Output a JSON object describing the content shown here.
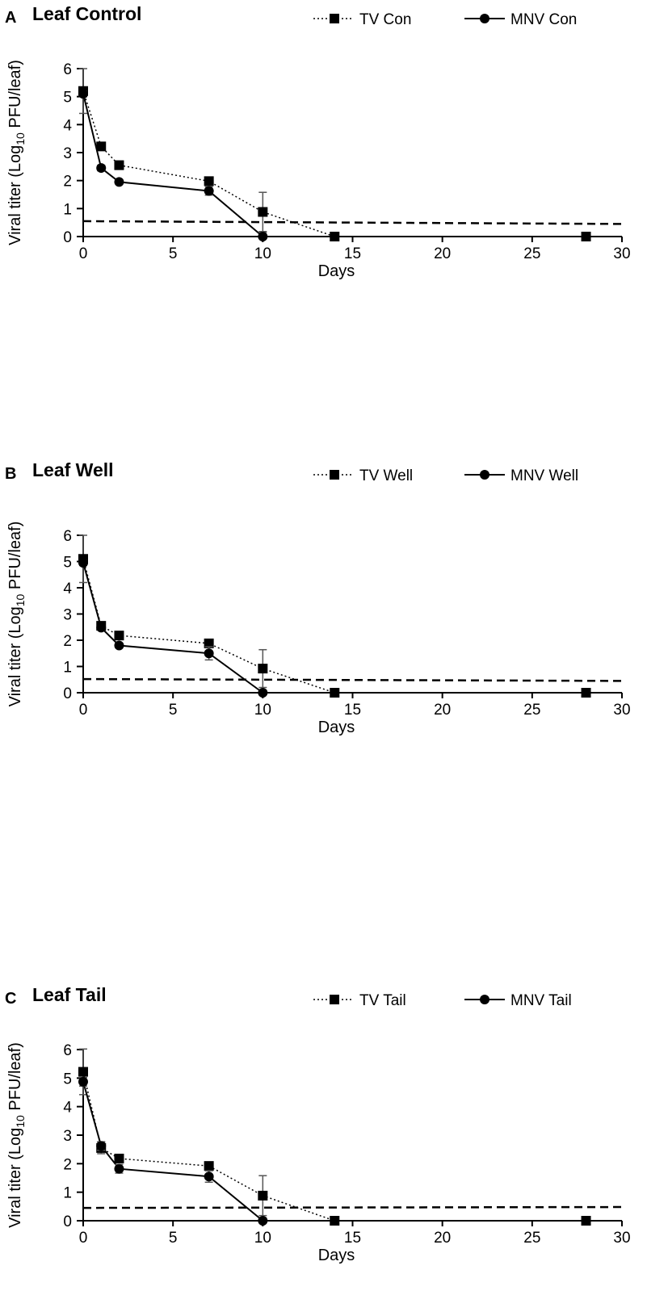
{
  "chart_data": [
    {
      "type": "line",
      "panel_letter": "A",
      "title": "Leaf Control",
      "xlabel": "Days",
      "ylabel": "Viral titer (Log10 PFU/leaf)",
      "ylabel_parts": [
        "Viral titer (Log",
        "10",
        " PFU/leaf)"
      ],
      "xlim": [
        0,
        30
      ],
      "ylim": [
        0,
        6
      ],
      "xticks": [
        0,
        5,
        10,
        15,
        20,
        25,
        30
      ],
      "yticks": [
        0,
        1,
        2,
        3,
        4,
        5,
        6
      ],
      "legend_position": "top-right",
      "series": [
        {
          "name": "TV Con",
          "style": "dotted",
          "marker": "square",
          "x": [
            0,
            1,
            2,
            7,
            10,
            14,
            28
          ],
          "y": [
            5.2,
            3.22,
            2.55,
            1.98,
            0.88,
            0,
            0
          ],
          "err": [
            0.8,
            0.05,
            0.15,
            0.08,
            0.7,
            0,
            0
          ]
        },
        {
          "name": "MNV Con",
          "style": "solid",
          "marker": "circle",
          "x": [
            0,
            1,
            2,
            7,
            10
          ],
          "y": [
            5.1,
            2.45,
            1.95,
            1.63,
            0
          ],
          "err": [
            0.1,
            0.1,
            0.08,
            0.15,
            0.15
          ]
        }
      ],
      "detection_limit": {
        "style": "dashed",
        "x": [
          0,
          30
        ],
        "y": [
          0.55,
          0.45
        ]
      }
    },
    {
      "type": "line",
      "panel_letter": "B",
      "title": "Leaf Well",
      "xlabel": "Days",
      "ylabel": "Viral titer (Log10 PFU/leaf)",
      "ylabel_parts": [
        "Viral titer (Log",
        "10",
        " PFU/leaf)"
      ],
      "xlim": [
        0,
        30
      ],
      "ylim": [
        0,
        6
      ],
      "xticks": [
        0,
        5,
        10,
        15,
        20,
        25,
        30
      ],
      "yticks": [
        0,
        1,
        2,
        3,
        4,
        5,
        6
      ],
      "legend_position": "top-right",
      "series": [
        {
          "name": "TV Well",
          "style": "dotted",
          "marker": "square",
          "x": [
            0,
            1,
            2,
            7,
            10,
            14,
            28
          ],
          "y": [
            5.1,
            2.55,
            2.18,
            1.88,
            0.92,
            0,
            0
          ],
          "err": [
            0.9,
            0.05,
            0.08,
            0.08,
            0.72,
            0,
            0
          ]
        },
        {
          "name": "MNV Well",
          "style": "solid",
          "marker": "circle",
          "x": [
            0,
            1,
            2,
            7,
            10
          ],
          "y": [
            4.95,
            2.48,
            1.8,
            1.5,
            0
          ],
          "err": [
            0.1,
            0.08,
            0.08,
            0.25,
            0.1
          ]
        }
      ],
      "detection_limit": {
        "style": "dashed",
        "x": [
          0,
          30
        ],
        "y": [
          0.52,
          0.45
        ]
      }
    },
    {
      "type": "line",
      "panel_letter": "C",
      "title": "Leaf Tail",
      "xlabel": "Days",
      "ylabel": "Viral titer (Log10 PFU/leaf)",
      "ylabel_parts": [
        "Viral titer (Log",
        "10",
        " PFU/leaf)"
      ],
      "xlim": [
        0,
        30
      ],
      "ylim": [
        0,
        6
      ],
      "xticks": [
        0,
        5,
        10,
        15,
        20,
        25,
        30
      ],
      "yticks": [
        0,
        1,
        2,
        3,
        4,
        5,
        6
      ],
      "legend_position": "top-right",
      "series": [
        {
          "name": "TV Tail",
          "style": "dotted",
          "marker": "square",
          "x": [
            0,
            1,
            2,
            7,
            10,
            14,
            28
          ],
          "y": [
            5.22,
            2.55,
            2.18,
            1.92,
            0.88,
            0,
            0
          ],
          "err": [
            0.8,
            0.2,
            0.08,
            0.1,
            0.7,
            0,
            0
          ]
        },
        {
          "name": "MNV Tail",
          "style": "solid",
          "marker": "circle",
          "x": [
            0,
            1,
            2,
            7,
            10
          ],
          "y": [
            4.87,
            2.62,
            1.82,
            1.55,
            0
          ],
          "err": [
            0.15,
            0.15,
            0.15,
            0.2,
            0.1
          ]
        }
      ],
      "detection_limit": {
        "style": "dashed",
        "x": [
          0,
          30
        ],
        "y": [
          0.45,
          0.48
        ]
      }
    }
  ]
}
